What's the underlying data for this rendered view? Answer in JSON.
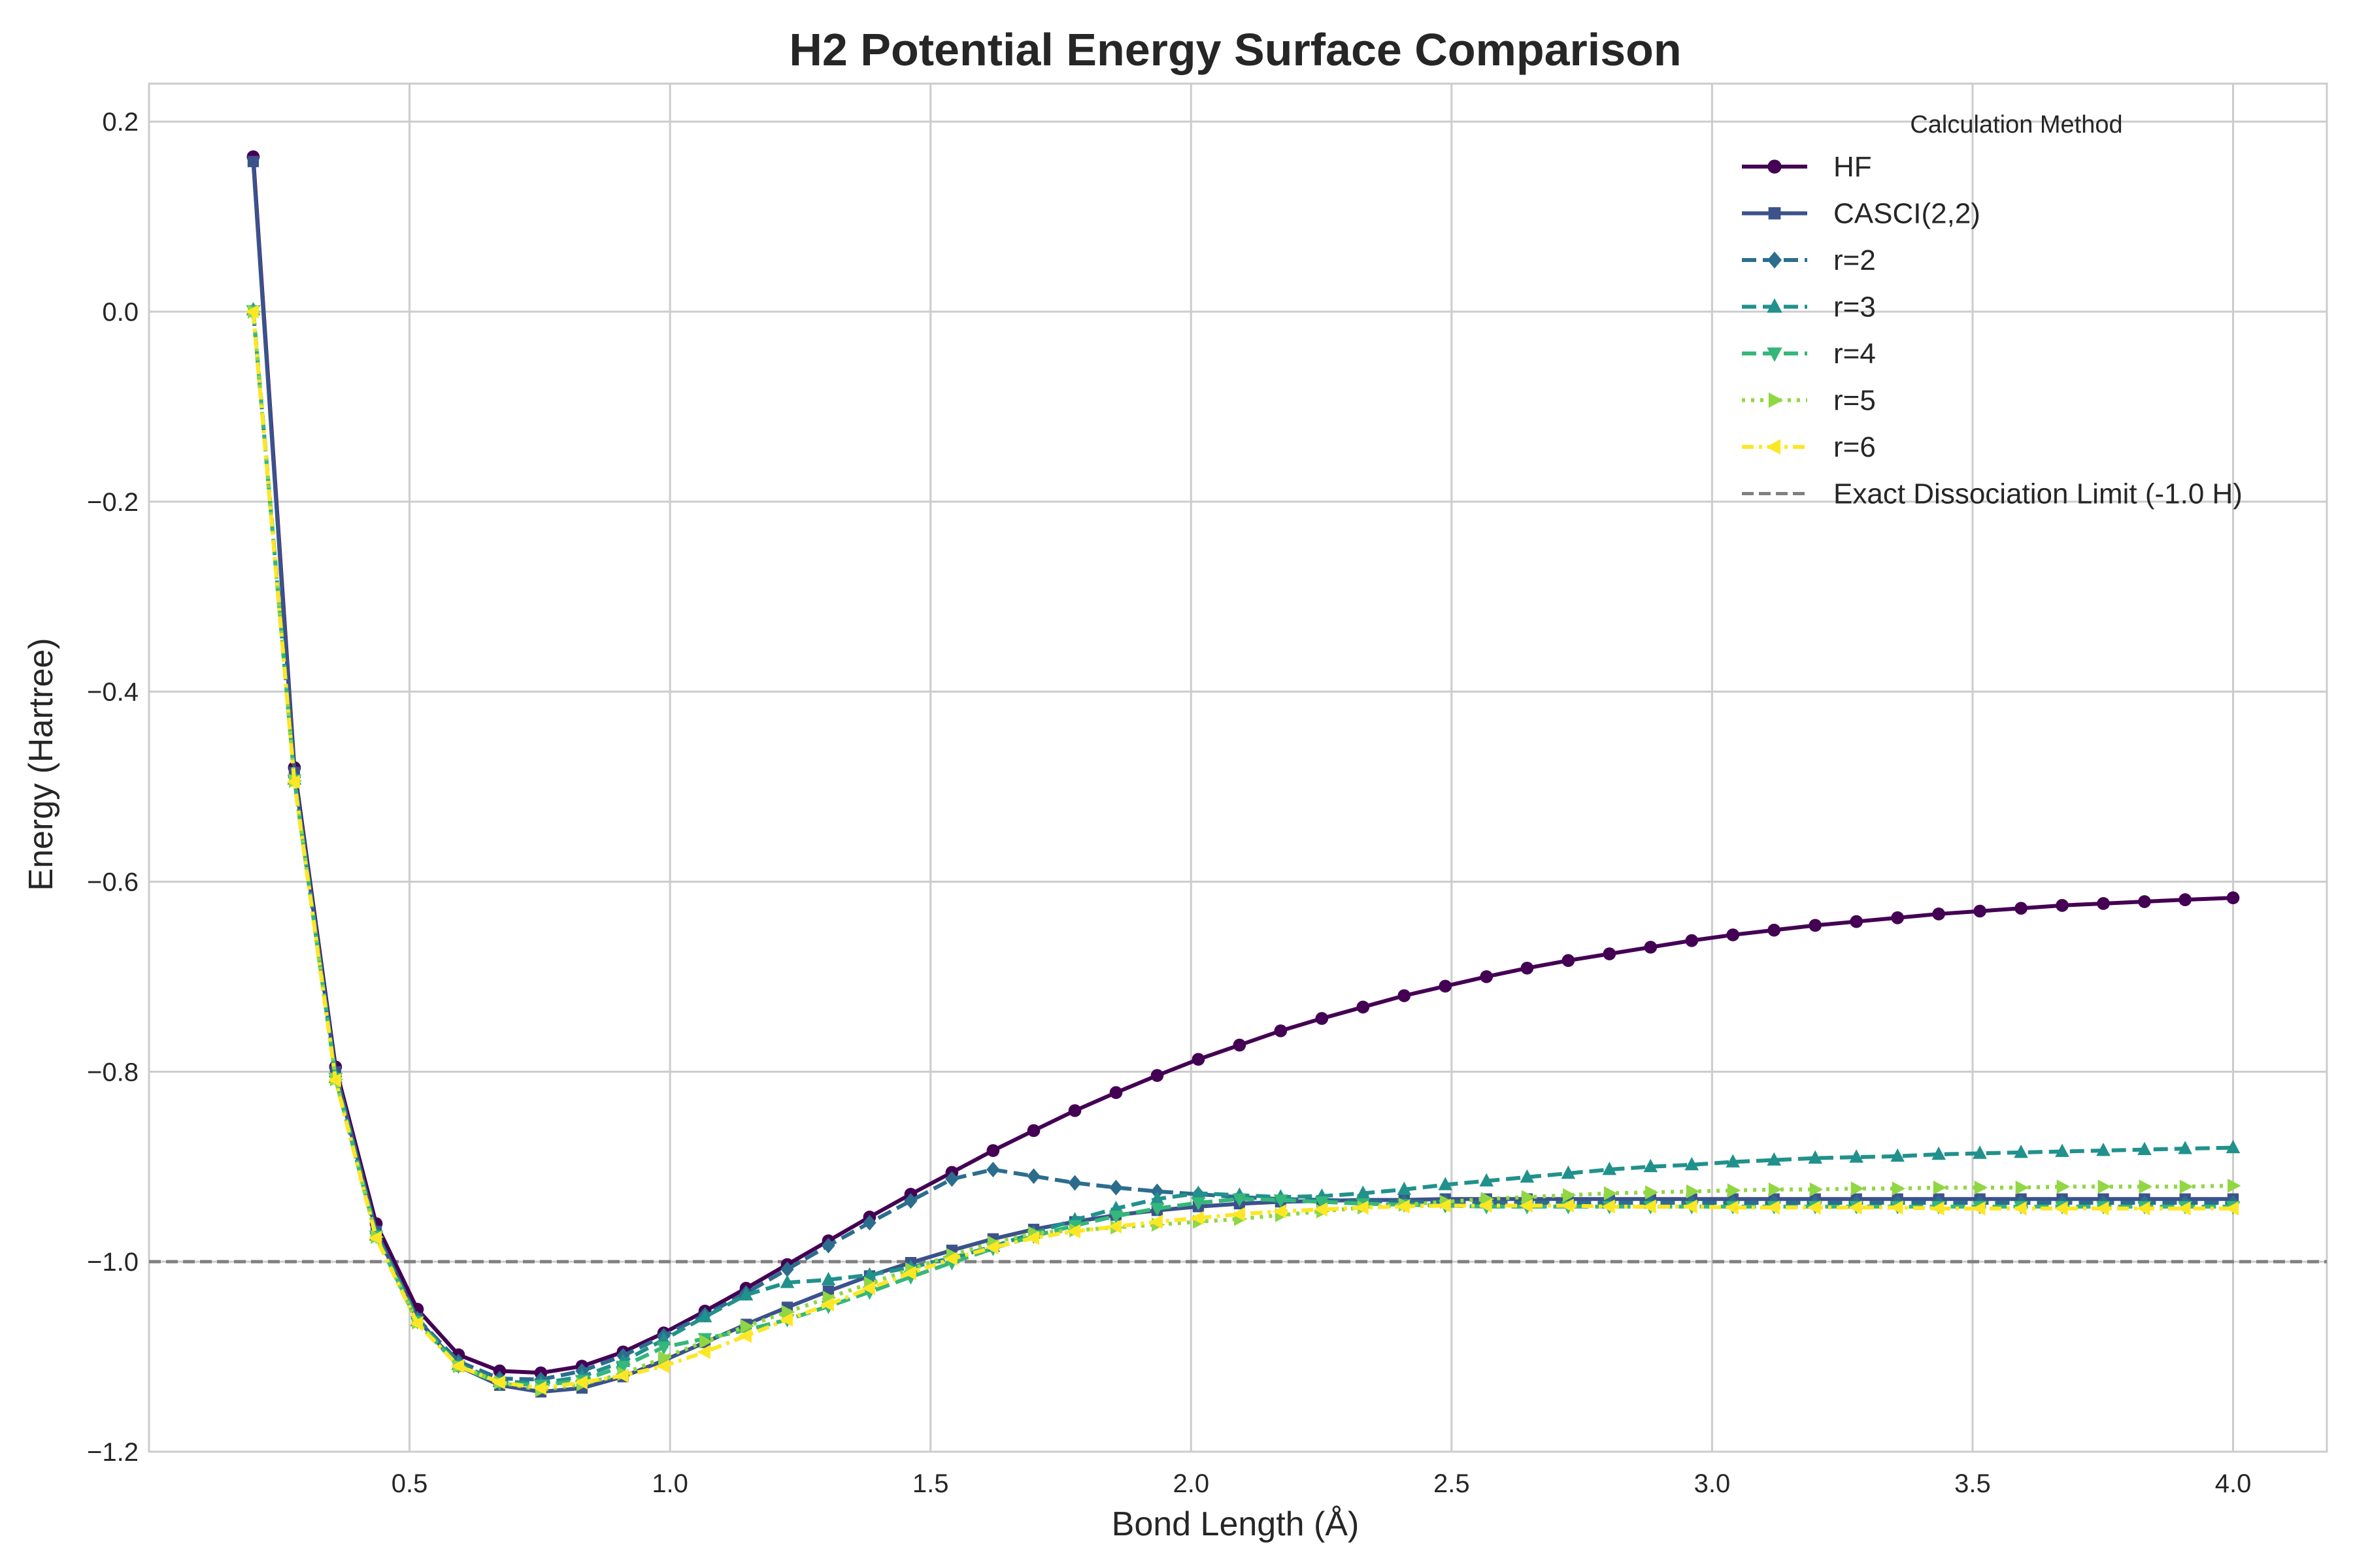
{
  "chart_data": {
    "type": "line",
    "title": "H2 Potential Energy Surface Comparison",
    "xlabel": "Bond Length (Å)",
    "ylabel": "Energy (Hartree)",
    "xlim": [
      0.0,
      4.18
    ],
    "ylim": [
      -1.2,
      0.24
    ],
    "grid": true,
    "x_ticks": [
      0.5,
      1.0,
      1.5,
      2.0,
      2.5,
      3.0,
      3.5,
      4.0
    ],
    "x_tick_labels": [
      "0.5",
      "1.0",
      "1.5",
      "2.0",
      "2.5",
      "3.0",
      "3.5",
      "4.0"
    ],
    "y_ticks": [
      0.2,
      0.0,
      -0.2,
      -0.4,
      -0.6,
      -0.8,
      -1.0,
      -1.2
    ],
    "y_tick_labels": [
      "0.2",
      "0.0",
      "−0.2",
      "−0.4",
      "−0.6",
      "−0.8",
      "−1.0",
      "−1.2"
    ],
    "legend_title": "Calculation Method",
    "legend_position": "top-right",
    "reference_line": {
      "label": "Exact Dissociation Limit (-1.0 H)",
      "y": -1.0,
      "color": "#808080"
    },
    "x": [
      0.2,
      0.279,
      0.358,
      0.436,
      0.515,
      0.594,
      0.673,
      0.752,
      0.831,
      0.91,
      0.988,
      1.067,
      1.146,
      1.225,
      1.304,
      1.383,
      1.462,
      1.541,
      1.62,
      1.698,
      1.777,
      1.856,
      1.935,
      2.014,
      2.093,
      2.172,
      2.251,
      2.33,
      2.409,
      2.488,
      2.567,
      2.645,
      2.724,
      2.803,
      2.882,
      2.961,
      3.04,
      3.119,
      3.198,
      3.277,
      3.356,
      3.435,
      3.514,
      3.593,
      3.672,
      3.751,
      3.83,
      3.908,
      4.0
    ],
    "series": [
      {
        "name": "HF",
        "color": "#440154",
        "marker": "circle",
        "dash": "solid",
        "values": [
          0.163,
          -0.48,
          -0.795,
          -0.96,
          -1.05,
          -1.098,
          -1.115,
          -1.117,
          -1.11,
          -1.095,
          -1.075,
          -1.052,
          -1.028,
          -1.003,
          -0.978,
          -0.953,
          -0.929,
          -0.906,
          -0.883,
          -0.862,
          -0.841,
          -0.822,
          -0.804,
          -0.787,
          -0.772,
          -0.757,
          -0.744,
          -0.732,
          -0.72,
          -0.71,
          -0.7,
          -0.691,
          -0.683,
          -0.676,
          -0.669,
          -0.662,
          -0.656,
          -0.651,
          -0.646,
          -0.642,
          -0.638,
          -0.634,
          -0.631,
          -0.628,
          -0.625,
          -0.623,
          -0.621,
          -0.619,
          -0.617
        ]
      },
      {
        "name": "CASCI(2,2)",
        "color": "#3b528b",
        "marker": "square",
        "dash": "solid",
        "values": [
          0.158,
          -0.485,
          -0.8,
          -0.968,
          -1.06,
          -1.11,
          -1.13,
          -1.137,
          -1.133,
          -1.121,
          -1.104,
          -1.085,
          -1.066,
          -1.048,
          -1.031,
          -1.015,
          -1.001,
          -0.988,
          -0.976,
          -0.966,
          -0.958,
          -0.951,
          -0.946,
          -0.942,
          -0.939,
          -0.937,
          -0.936,
          -0.935,
          -0.935,
          -0.934,
          -0.934,
          -0.934,
          -0.934,
          -0.934,
          -0.934,
          -0.934,
          -0.934,
          -0.934,
          -0.934,
          -0.934,
          -0.934,
          -0.934,
          -0.934,
          -0.934,
          -0.934,
          -0.934,
          -0.934,
          -0.934,
          -0.934
        ]
      },
      {
        "name": "r=2",
        "color": "#2c6d8e",
        "marker": "diamond",
        "dash": "dashed",
        "values": [
          0.0,
          -0.49,
          -0.805,
          -0.97,
          -1.06,
          -1.105,
          -1.123,
          -1.124,
          -1.115,
          -1.099,
          -1.078,
          -1.056,
          -1.033,
          -1.008,
          -0.983,
          -0.959,
          -0.936,
          -0.913,
          -0.903,
          -0.91,
          -0.917,
          -0.922,
          -0.926,
          -0.929,
          -0.932,
          -0.934,
          -0.935,
          -0.936,
          -0.937,
          -0.937,
          -0.938,
          -0.938,
          -0.938,
          -0.938,
          -0.938,
          -0.938,
          -0.938,
          -0.938,
          -0.938,
          -0.938,
          -0.938,
          -0.938,
          -0.938,
          -0.938,
          -0.938,
          -0.938,
          -0.938,
          -0.938,
          -0.938
        ]
      },
      {
        "name": "r=3",
        "color": "#21918c",
        "marker": "triangle-up",
        "dash": "dashed",
        "values": [
          0.002,
          -0.492,
          -0.806,
          -0.972,
          -1.062,
          -1.108,
          -1.126,
          -1.128,
          -1.121,
          -1.105,
          -1.082,
          -1.058,
          -1.035,
          -1.022,
          -1.019,
          -1.014,
          -1.006,
          -0.996,
          -0.984,
          -0.97,
          -0.956,
          -0.944,
          -0.934,
          -0.928,
          -0.93,
          -0.932,
          -0.931,
          -0.928,
          -0.924,
          -0.919,
          -0.915,
          -0.911,
          -0.907,
          -0.903,
          -0.9,
          -0.898,
          -0.895,
          -0.893,
          -0.891,
          -0.89,
          -0.889,
          -0.887,
          -0.886,
          -0.885,
          -0.884,
          -0.883,
          -0.882,
          -0.881,
          -0.88
        ]
      },
      {
        "name": "r=4",
        "color": "#35b779",
        "marker": "triangle-down",
        "dash": "dashed",
        "values": [
          0.001,
          -0.493,
          -0.807,
          -0.973,
          -1.063,
          -1.11,
          -1.128,
          -1.13,
          -1.125,
          -1.11,
          -1.09,
          -1.081,
          -1.072,
          -1.061,
          -1.047,
          -1.032,
          -1.016,
          -1.001,
          -0.986,
          -0.973,
          -0.962,
          -0.952,
          -0.944,
          -0.938,
          -0.934,
          -0.935,
          -0.937,
          -0.939,
          -0.94,
          -0.941,
          -0.942,
          -0.942,
          -0.942,
          -0.942,
          -0.942,
          -0.942,
          -0.942,
          -0.942,
          -0.942,
          -0.942,
          -0.942,
          -0.942,
          -0.942,
          -0.942,
          -0.942,
          -0.942,
          -0.942,
          -0.942,
          -0.942
        ]
      },
      {
        "name": "r=5",
        "color": "#90d743",
        "marker": "triangle-right",
        "dash": "dotted",
        "values": [
          0.0,
          -0.494,
          -0.808,
          -0.974,
          -1.064,
          -1.11,
          -1.127,
          -1.135,
          -1.129,
          -1.118,
          -1.101,
          -1.084,
          -1.068,
          -1.053,
          -1.038,
          -1.023,
          -1.008,
          -0.993,
          -0.98,
          -0.97,
          -0.967,
          -0.964,
          -0.961,
          -0.958,
          -0.955,
          -0.951,
          -0.947,
          -0.943,
          -0.94,
          -0.937,
          -0.934,
          -0.932,
          -0.93,
          -0.928,
          -0.927,
          -0.926,
          -0.925,
          -0.924,
          -0.924,
          -0.923,
          -0.923,
          -0.922,
          -0.922,
          -0.922,
          -0.921,
          -0.921,
          -0.921,
          -0.921,
          -0.92
        ]
      },
      {
        "name": "r=6",
        "color": "#fde725",
        "marker": "triangle-left",
        "dash": "dash-dot",
        "values": [
          0.0,
          -0.495,
          -0.809,
          -0.975,
          -1.065,
          -1.11,
          -1.127,
          -1.133,
          -1.127,
          -1.12,
          -1.11,
          -1.095,
          -1.078,
          -1.061,
          -1.045,
          -1.028,
          -1.012,
          -0.997,
          -0.985,
          -0.975,
          -0.968,
          -0.963,
          -0.958,
          -0.954,
          -0.95,
          -0.947,
          -0.945,
          -0.943,
          -0.942,
          -0.941,
          -0.941,
          -0.941,
          -0.941,
          -0.942,
          -0.942,
          -0.942,
          -0.943,
          -0.943,
          -0.943,
          -0.943,
          -0.943,
          -0.944,
          -0.944,
          -0.944,
          -0.944,
          -0.944,
          -0.944,
          -0.944,
          -0.944
        ]
      }
    ]
  }
}
